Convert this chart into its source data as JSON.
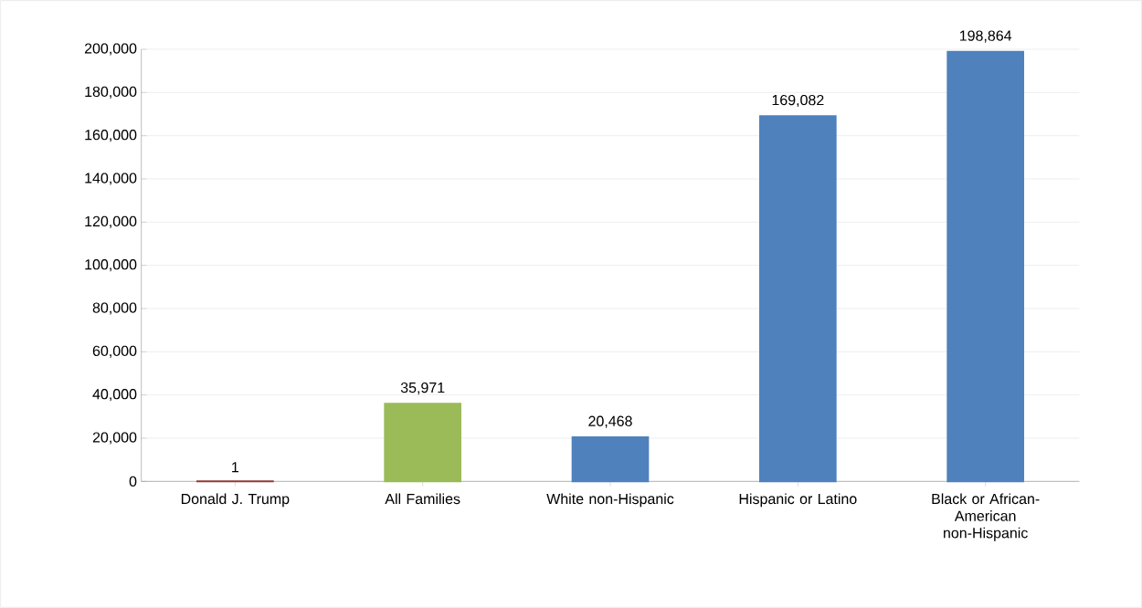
{
  "chart_data": {
    "type": "bar",
    "categories": [
      "Donald J. Trump",
      "All Families",
      "White non-Hispanic",
      "Hispanic or Latino",
      "Black or African-American non-Hispanic"
    ],
    "values": [
      1,
      35971,
      20468,
      169082,
      198864
    ],
    "colors": [
      "#953735",
      "#9bbb59",
      "#4f81bd",
      "#4f81bd",
      "#4f81bd"
    ],
    "value_labels": [
      "1",
      "35,971",
      "20,468",
      "169,082",
      "198,864"
    ],
    "ylim": [
      0,
      200000
    ],
    "yticks": [
      {
        "value": 0,
        "label": "0"
      },
      {
        "value": 20000,
        "label": "20,000"
      },
      {
        "value": 40000,
        "label": "40,000"
      },
      {
        "value": 60000,
        "label": "60,000"
      },
      {
        "value": 80000,
        "label": "80,000"
      },
      {
        "value": 100000,
        "label": "100,000"
      },
      {
        "value": 120000,
        "label": "120,000"
      },
      {
        "value": 140000,
        "label": "140,000"
      },
      {
        "value": 160000,
        "label": "160,000"
      },
      {
        "value": 180000,
        "label": "180,000"
      },
      {
        "value": 200000,
        "label": "200,000"
      }
    ],
    "grid": "y"
  }
}
